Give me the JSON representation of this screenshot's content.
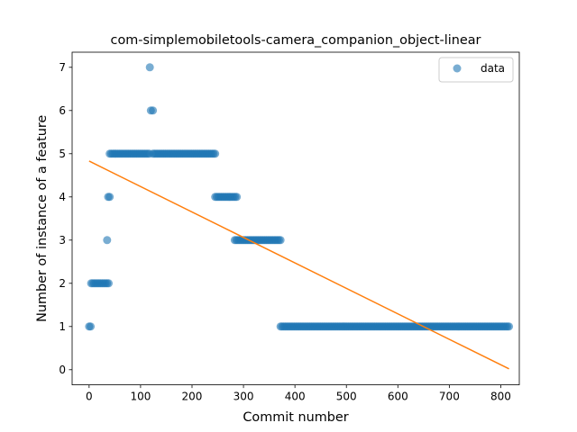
{
  "chart_data": {
    "type": "scatter",
    "title": "com-simplemobiletools-camera_companion_object-linear",
    "xlabel": "Commit number",
    "ylabel": "Number of instance of a feature",
    "xlim": [
      -33,
      836
    ],
    "ylim": [
      -0.35,
      7.35
    ],
    "xticks": [
      0,
      100,
      200,
      300,
      400,
      500,
      600,
      700,
      800
    ],
    "yticks": [
      0,
      1,
      2,
      3,
      4,
      5,
      6,
      7
    ],
    "legend": {
      "position": "top-right",
      "entries": [
        "data"
      ]
    },
    "colors": {
      "points": "#1f77b4",
      "fit_line": "#ff7f0e"
    },
    "grid": false,
    "series": [
      {
        "name": "data",
        "kind": "scatter",
        "segments": [
          {
            "x_start": 0,
            "x_end": 3,
            "y": 1
          },
          {
            "x_start": 4,
            "x_end": 38,
            "y": 2
          },
          {
            "x_start": 35,
            "x_end": 35,
            "y": 3
          },
          {
            "x_start": 37,
            "x_end": 40,
            "y": 4
          },
          {
            "x_start": 40,
            "x_end": 117,
            "y": 5
          },
          {
            "x_start": 118,
            "x_end": 119,
            "y": 7
          },
          {
            "x_start": 120,
            "x_end": 124,
            "y": 6
          },
          {
            "x_start": 124,
            "x_end": 245,
            "y": 5
          },
          {
            "x_start": 245,
            "x_end": 287,
            "y": 4
          },
          {
            "x_start": 283,
            "x_end": 372,
            "y": 3
          },
          {
            "x_start": 372,
            "x_end": 816,
            "y": 1
          }
        ]
      },
      {
        "name": "",
        "kind": "line",
        "points": [
          [
            0,
            4.83
          ],
          [
            816,
            0.02
          ]
        ]
      }
    ]
  }
}
